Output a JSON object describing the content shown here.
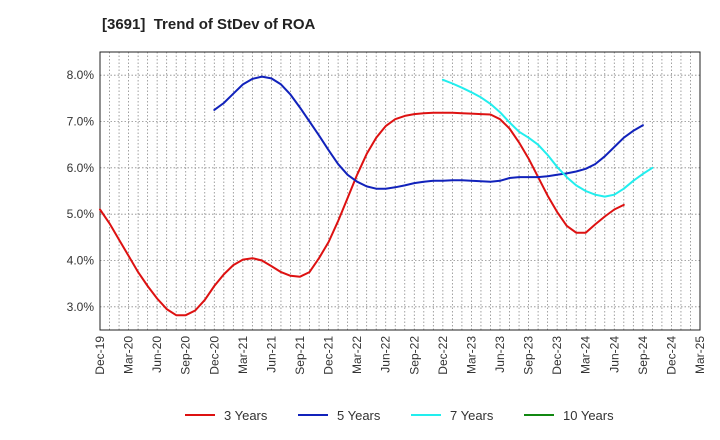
{
  "chart_data": {
    "type": "line",
    "title": "[3691]  Trend of StDev of ROA",
    "xlabel": "",
    "ylabel": "",
    "x_tick_labels": [
      "Dec-19",
      "Mar-20",
      "Jun-20",
      "Sep-20",
      "Dec-20",
      "Mar-21",
      "Jun-21",
      "Sep-21",
      "Dec-21",
      "Mar-22",
      "Jun-22",
      "Sep-22",
      "Dec-22",
      "Mar-23",
      "Jun-23",
      "Sep-23",
      "Dec-23",
      "Mar-24",
      "Jun-24",
      "Sep-24",
      "Dec-24",
      "Mar-25"
    ],
    "y_tick_labels": [
      "3.0%",
      "4.0%",
      "5.0%",
      "6.0%",
      "7.0%",
      "8.0%"
    ],
    "ylim": [
      2.5,
      8.5
    ],
    "grid": true,
    "legend_position": "bottom",
    "series": [
      {
        "name": "3 Years",
        "color": "#dd1111",
        "points": [
          [
            "Dec-19",
            5.1
          ],
          [
            "Jan-20",
            4.8
          ],
          [
            "Feb-20",
            4.45
          ],
          [
            "Mar-20",
            4.1
          ],
          [
            "Apr-20",
            3.75
          ],
          [
            "May-20",
            3.45
          ],
          [
            "Jun-20",
            3.18
          ],
          [
            "Jul-20",
            2.95
          ],
          [
            "Aug-20",
            2.82
          ],
          [
            "Sep-20",
            2.82
          ],
          [
            "Oct-20",
            2.92
          ],
          [
            "Nov-20",
            3.15
          ],
          [
            "Dec-20",
            3.45
          ],
          [
            "Jan-21",
            3.7
          ],
          [
            "Feb-21",
            3.9
          ],
          [
            "Mar-21",
            4.02
          ],
          [
            "Apr-21",
            4.05
          ],
          [
            "May-21",
            4.0
          ],
          [
            "Jun-21",
            3.88
          ],
          [
            "Jul-21",
            3.75
          ],
          [
            "Aug-21",
            3.67
          ],
          [
            "Sep-21",
            3.65
          ],
          [
            "Oct-21",
            3.75
          ],
          [
            "Nov-21",
            4.05
          ],
          [
            "Dec-21",
            4.4
          ],
          [
            "Jan-22",
            4.85
          ],
          [
            "Feb-22",
            5.35
          ],
          [
            "Mar-22",
            5.85
          ],
          [
            "Apr-22",
            6.3
          ],
          [
            "May-22",
            6.65
          ],
          [
            "Jun-22",
            6.9
          ],
          [
            "Jul-22",
            7.05
          ],
          [
            "Aug-22",
            7.12
          ],
          [
            "Sep-22",
            7.16
          ],
          [
            "Oct-22",
            7.18
          ],
          [
            "Nov-22",
            7.19
          ],
          [
            "Dec-22",
            7.19
          ],
          [
            "Jan-23",
            7.19
          ],
          [
            "Feb-23",
            7.18
          ],
          [
            "Mar-23",
            7.17
          ],
          [
            "Apr-23",
            7.16
          ],
          [
            "May-23",
            7.15
          ],
          [
            "Jun-23",
            7.05
          ],
          [
            "Jul-23",
            6.85
          ],
          [
            "Aug-23",
            6.55
          ],
          [
            "Sep-23",
            6.2
          ],
          [
            "Oct-23",
            5.8
          ],
          [
            "Nov-23",
            5.4
          ],
          [
            "Dec-23",
            5.05
          ],
          [
            "Jan-24",
            4.75
          ],
          [
            "Feb-24",
            4.6
          ],
          [
            "Mar-24",
            4.6
          ],
          [
            "Apr-24",
            4.78
          ],
          [
            "May-24",
            4.95
          ],
          [
            "Jun-24",
            5.1
          ],
          [
            "Jul-24",
            5.2
          ]
        ]
      },
      {
        "name": "5 Years",
        "color": "#1122bb",
        "points": [
          [
            "Dec-20",
            7.25
          ],
          [
            "Jan-21",
            7.4
          ],
          [
            "Feb-21",
            7.6
          ],
          [
            "Mar-21",
            7.8
          ],
          [
            "Apr-21",
            7.92
          ],
          [
            "May-21",
            7.97
          ],
          [
            "Jun-21",
            7.93
          ],
          [
            "Jul-21",
            7.8
          ],
          [
            "Aug-21",
            7.58
          ],
          [
            "Sep-21",
            7.3
          ],
          [
            "Oct-21",
            7.0
          ],
          [
            "Nov-21",
            6.7
          ],
          [
            "Dec-21",
            6.38
          ],
          [
            "Jan-22",
            6.08
          ],
          [
            "Feb-22",
            5.85
          ],
          [
            "Mar-22",
            5.7
          ],
          [
            "Apr-22",
            5.6
          ],
          [
            "May-22",
            5.55
          ],
          [
            "Jun-22",
            5.55
          ],
          [
            "Jul-22",
            5.58
          ],
          [
            "Aug-22",
            5.62
          ],
          [
            "Sep-22",
            5.67
          ],
          [
            "Oct-22",
            5.7
          ],
          [
            "Nov-22",
            5.72
          ],
          [
            "Dec-22",
            5.72
          ],
          [
            "Jan-23",
            5.73
          ],
          [
            "Feb-23",
            5.73
          ],
          [
            "Mar-23",
            5.72
          ],
          [
            "Apr-23",
            5.71
          ],
          [
            "May-23",
            5.7
          ],
          [
            "Jun-23",
            5.72
          ],
          [
            "Jul-23",
            5.78
          ],
          [
            "Aug-23",
            5.8
          ],
          [
            "Sep-23",
            5.8
          ],
          [
            "Oct-23",
            5.8
          ],
          [
            "Nov-23",
            5.82
          ],
          [
            "Dec-23",
            5.85
          ],
          [
            "Jan-24",
            5.88
          ],
          [
            "Feb-24",
            5.92
          ],
          [
            "Mar-24",
            5.98
          ],
          [
            "Apr-24",
            6.08
          ],
          [
            "May-24",
            6.25
          ],
          [
            "Jun-24",
            6.45
          ],
          [
            "Jul-24",
            6.65
          ],
          [
            "Aug-24",
            6.8
          ],
          [
            "Sep-24",
            6.92
          ]
        ]
      },
      {
        "name": "7 Years",
        "color": "#22eeee",
        "points": [
          [
            "Dec-22",
            7.9
          ],
          [
            "Jan-23",
            7.82
          ],
          [
            "Feb-23",
            7.73
          ],
          [
            "Mar-23",
            7.63
          ],
          [
            "Apr-23",
            7.52
          ],
          [
            "May-23",
            7.38
          ],
          [
            "Jun-23",
            7.2
          ],
          [
            "Jul-23",
            6.98
          ],
          [
            "Aug-23",
            6.78
          ],
          [
            "Sep-23",
            6.65
          ],
          [
            "Oct-23",
            6.5
          ],
          [
            "Nov-23",
            6.28
          ],
          [
            "Dec-23",
            6.02
          ],
          [
            "Jan-24",
            5.8
          ],
          [
            "Feb-24",
            5.62
          ],
          [
            "Mar-24",
            5.5
          ],
          [
            "Apr-24",
            5.42
          ],
          [
            "May-24",
            5.38
          ],
          [
            "Jun-24",
            5.42
          ],
          [
            "Jul-24",
            5.55
          ],
          [
            "Aug-24",
            5.72
          ],
          [
            "Sep-24",
            5.87
          ],
          [
            "Oct-24",
            6.0
          ]
        ]
      },
      {
        "name": "10 Years",
        "color": "#118811",
        "points": []
      }
    ]
  }
}
